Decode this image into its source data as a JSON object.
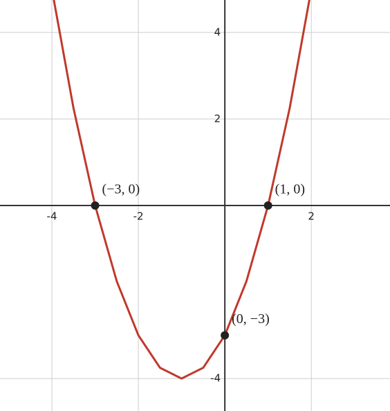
{
  "chart_data": {
    "type": "line",
    "x": [
      -4,
      -3.5,
      -3,
      -2.5,
      -2,
      -1.5,
      -1,
      -0.5,
      0,
      0.5,
      1,
      1.5,
      2
    ],
    "series": [
      {
        "color": "#c0392b",
        "values": [
          5,
          2.25,
          0,
          -1.75,
          -3,
          -3.75,
          -4,
          -3.75,
          -3,
          -1.75,
          0,
          2.25,
          5
        ]
      }
    ],
    "points": {
      "x": [
        -3,
        1,
        0
      ],
      "y": [
        0,
        0,
        -3
      ],
      "labels": [
        "(−3, 0)",
        "(1, 0)",
        "(0, −3)"
      ],
      "color": "#222222"
    },
    "xlim": [
      -5.2,
      3.82
    ],
    "ylim": [
      -4.75,
      4.75
    ],
    "xticks": [
      -4,
      -2,
      2
    ],
    "yticks": [
      -4,
      2,
      4
    ],
    "grid": true
  }
}
